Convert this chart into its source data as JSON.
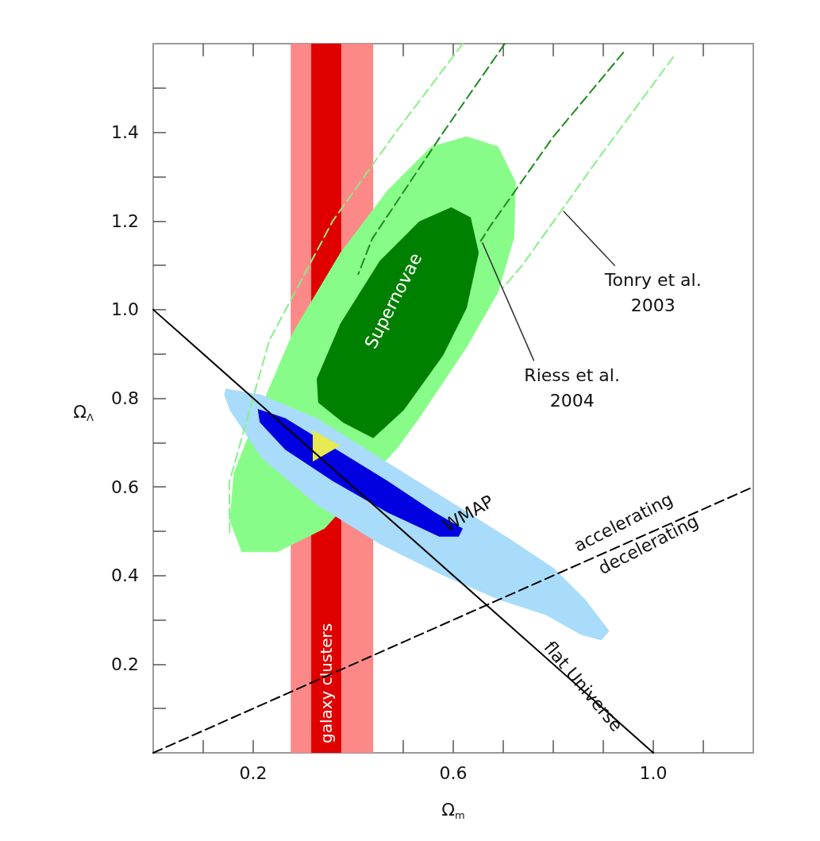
{
  "chart_data": {
    "type": "area",
    "xlabel": "Ω$_{m}$",
    "ylabel": "Ω$_{Λ}$",
    "xlim": [
      0,
      1.2
    ],
    "ylim": [
      0,
      1.6
    ],
    "xticks": [
      {
        "value": 0.1,
        "label": null
      },
      0.2,
      {
        "value": 0.3,
        "label": null
      },
      {
        "value": 0.4,
        "label": null
      },
      {
        "value": 0.5,
        "label": null
      },
      0.6,
      {
        "value": 0.7,
        "label": null
      },
      {
        "value": 0.8,
        "label": null
      },
      {
        "value": 0.9,
        "label": null
      },
      {
        "value": 1,
        "label": "1.0"
      },
      {
        "value": 1.1,
        "label": null
      }
    ],
    "yticks": [
      {
        "value": 0.1,
        "label": null
      },
      0.2,
      {
        "value": 0.3,
        "label": null
      },
      0.4,
      {
        "value": 0.5,
        "label": null
      },
      0.6,
      {
        "value": 0.7,
        "label": null
      },
      0.8,
      {
        "value": 0.9,
        "label": null
      },
      {
        "value": 1,
        "label": "1.0"
      },
      {
        "value": 1.1,
        "label": null
      },
      1.2,
      {
        "value": 1.3,
        "label": null
      },
      1.4,
      {
        "value": 1.5,
        "label": null
      }
    ],
    "grid": false,
    "marker": "none",
    "series": [
      {
        "type": "line",
        "line_style": "dashed",
        "color": "#88f088",
        "x": [
          0.619,
          0.485,
          0.359,
          0.232,
          0.152,
          0.153
        ],
        "values": [
          1.6,
          1.4,
          1.2,
          0.93,
          0.61,
          0.49
        ]
      },
      {
        "type": "line",
        "line_style": "dashed",
        "color": "#88f088",
        "x": [
          1.04,
          0.896,
          0.738,
          0.7
        ],
        "values": [
          1.57,
          1.35,
          1.1,
          1.05
        ]
      },
      {
        "type": "line",
        "line_style": "dashed",
        "color": "#1e8c1e",
        "x": [
          0.703,
          0.58,
          0.438,
          0.41
        ],
        "values": [
          1.6,
          1.4,
          1.16,
          1.08
        ]
      },
      {
        "type": "line",
        "line_style": "dashed",
        "color": "#1e8c1e",
        "x": [
          0.94,
          0.8,
          0.675,
          0.655
        ],
        "values": [
          1.58,
          1.39,
          1.19,
          1.155
        ]
      },
      {
        "color": "#88fc88",
        "x": [
          0.627,
          0.69,
          0.725,
          0.722,
          0.69,
          0.627,
          0.532,
          0.49,
          0.343,
          0.248,
          0.177,
          0.153,
          0.161,
          0.185,
          0.28,
          0.374,
          0.469,
          0.556
        ],
        "values": [
          1.391,
          1.368,
          1.288,
          1.163,
          1.039,
          0.915,
          0.755,
          0.69,
          0.506,
          0.453,
          0.453,
          0.524,
          0.631,
          0.7,
          0.95,
          1.128,
          1.27,
          1.368
        ]
      },
      {
        "color": "#008000",
        "x": [
          0.596,
          0.635,
          0.651,
          0.627,
          0.58,
          0.501,
          0.44,
          0.38,
          0.33,
          0.327,
          0.374,
          0.453,
          0.532
        ],
        "values": [
          1.231,
          1.208,
          1.128,
          1.004,
          0.897,
          0.773,
          0.71,
          0.745,
          0.79,
          0.844,
          0.968,
          1.11,
          1.199
        ]
      },
      {
        "color": "#a8dcfa",
        "x": [
          0.145,
          0.216,
          0.327,
          0.453,
          0.58,
          0.706,
          0.801,
          0.864,
          0.912,
          0.896,
          0.856,
          0.785,
          0.69,
          0.58,
          0.453,
          0.327,
          0.216,
          0.153,
          0.142
        ],
        "values": [
          0.822,
          0.808,
          0.755,
          0.666,
          0.577,
          0.488,
          0.417,
          0.346,
          0.275,
          0.254,
          0.266,
          0.311,
          0.346,
          0.4,
          0.471,
          0.56,
          0.666,
          0.773,
          0.808
        ]
      },
      {
        "color": "#0000e0",
        "x": [
          0.209,
          0.264,
          0.4,
          0.469,
          0.564,
          0.619,
          0.611,
          0.572,
          0.469,
          0.359,
          0.264,
          0.213
        ],
        "values": [
          0.776,
          0.755,
          0.661,
          0.613,
          0.542,
          0.506,
          0.488,
          0.488,
          0.542,
          0.613,
          0.684,
          0.746
        ]
      },
      {
        "color": "#e8e850",
        "x": [
          0.319,
          0.374,
          0.319
        ],
        "values": [
          0.728,
          0.693,
          0.657
        ]
      },
      {
        "type": "line",
        "line_style": "solid",
        "color": "#000000",
        "x": [
          0,
          1
        ],
        "values": [
          1,
          0
        ]
      },
      {
        "type": "line",
        "line_style": "dashed",
        "color": "#000000",
        "x": [
          0,
          1.2
        ],
        "values": [
          0,
          0.6
        ]
      }
    ],
    "bands": [
      {
        "axis": "x",
        "from": 0.275,
        "to": 0.44,
        "color": "#fc8888"
      },
      {
        "axis": "x",
        "from": 0.316,
        "to": 0.376,
        "color": "#e00000",
        "label": "galaxy clusters"
      }
    ],
    "annotations": [
      "Supernovae",
      {
        "text": "WMAP",
        "x": 0.63,
        "y": 0.54
      },
      {
        "text": "flat Universe",
        "x": 0.86,
        "y": 0.15
      },
      "accelerating",
      "decelerating",
      {
        "text": "Tonry et al.\n2003",
        "x": 0.817,
        "y": 1.226
      },
      {
        "text": "Riess et al.\n2004",
        "x": 0.655,
        "y": 1.155
      }
    ]
  }
}
